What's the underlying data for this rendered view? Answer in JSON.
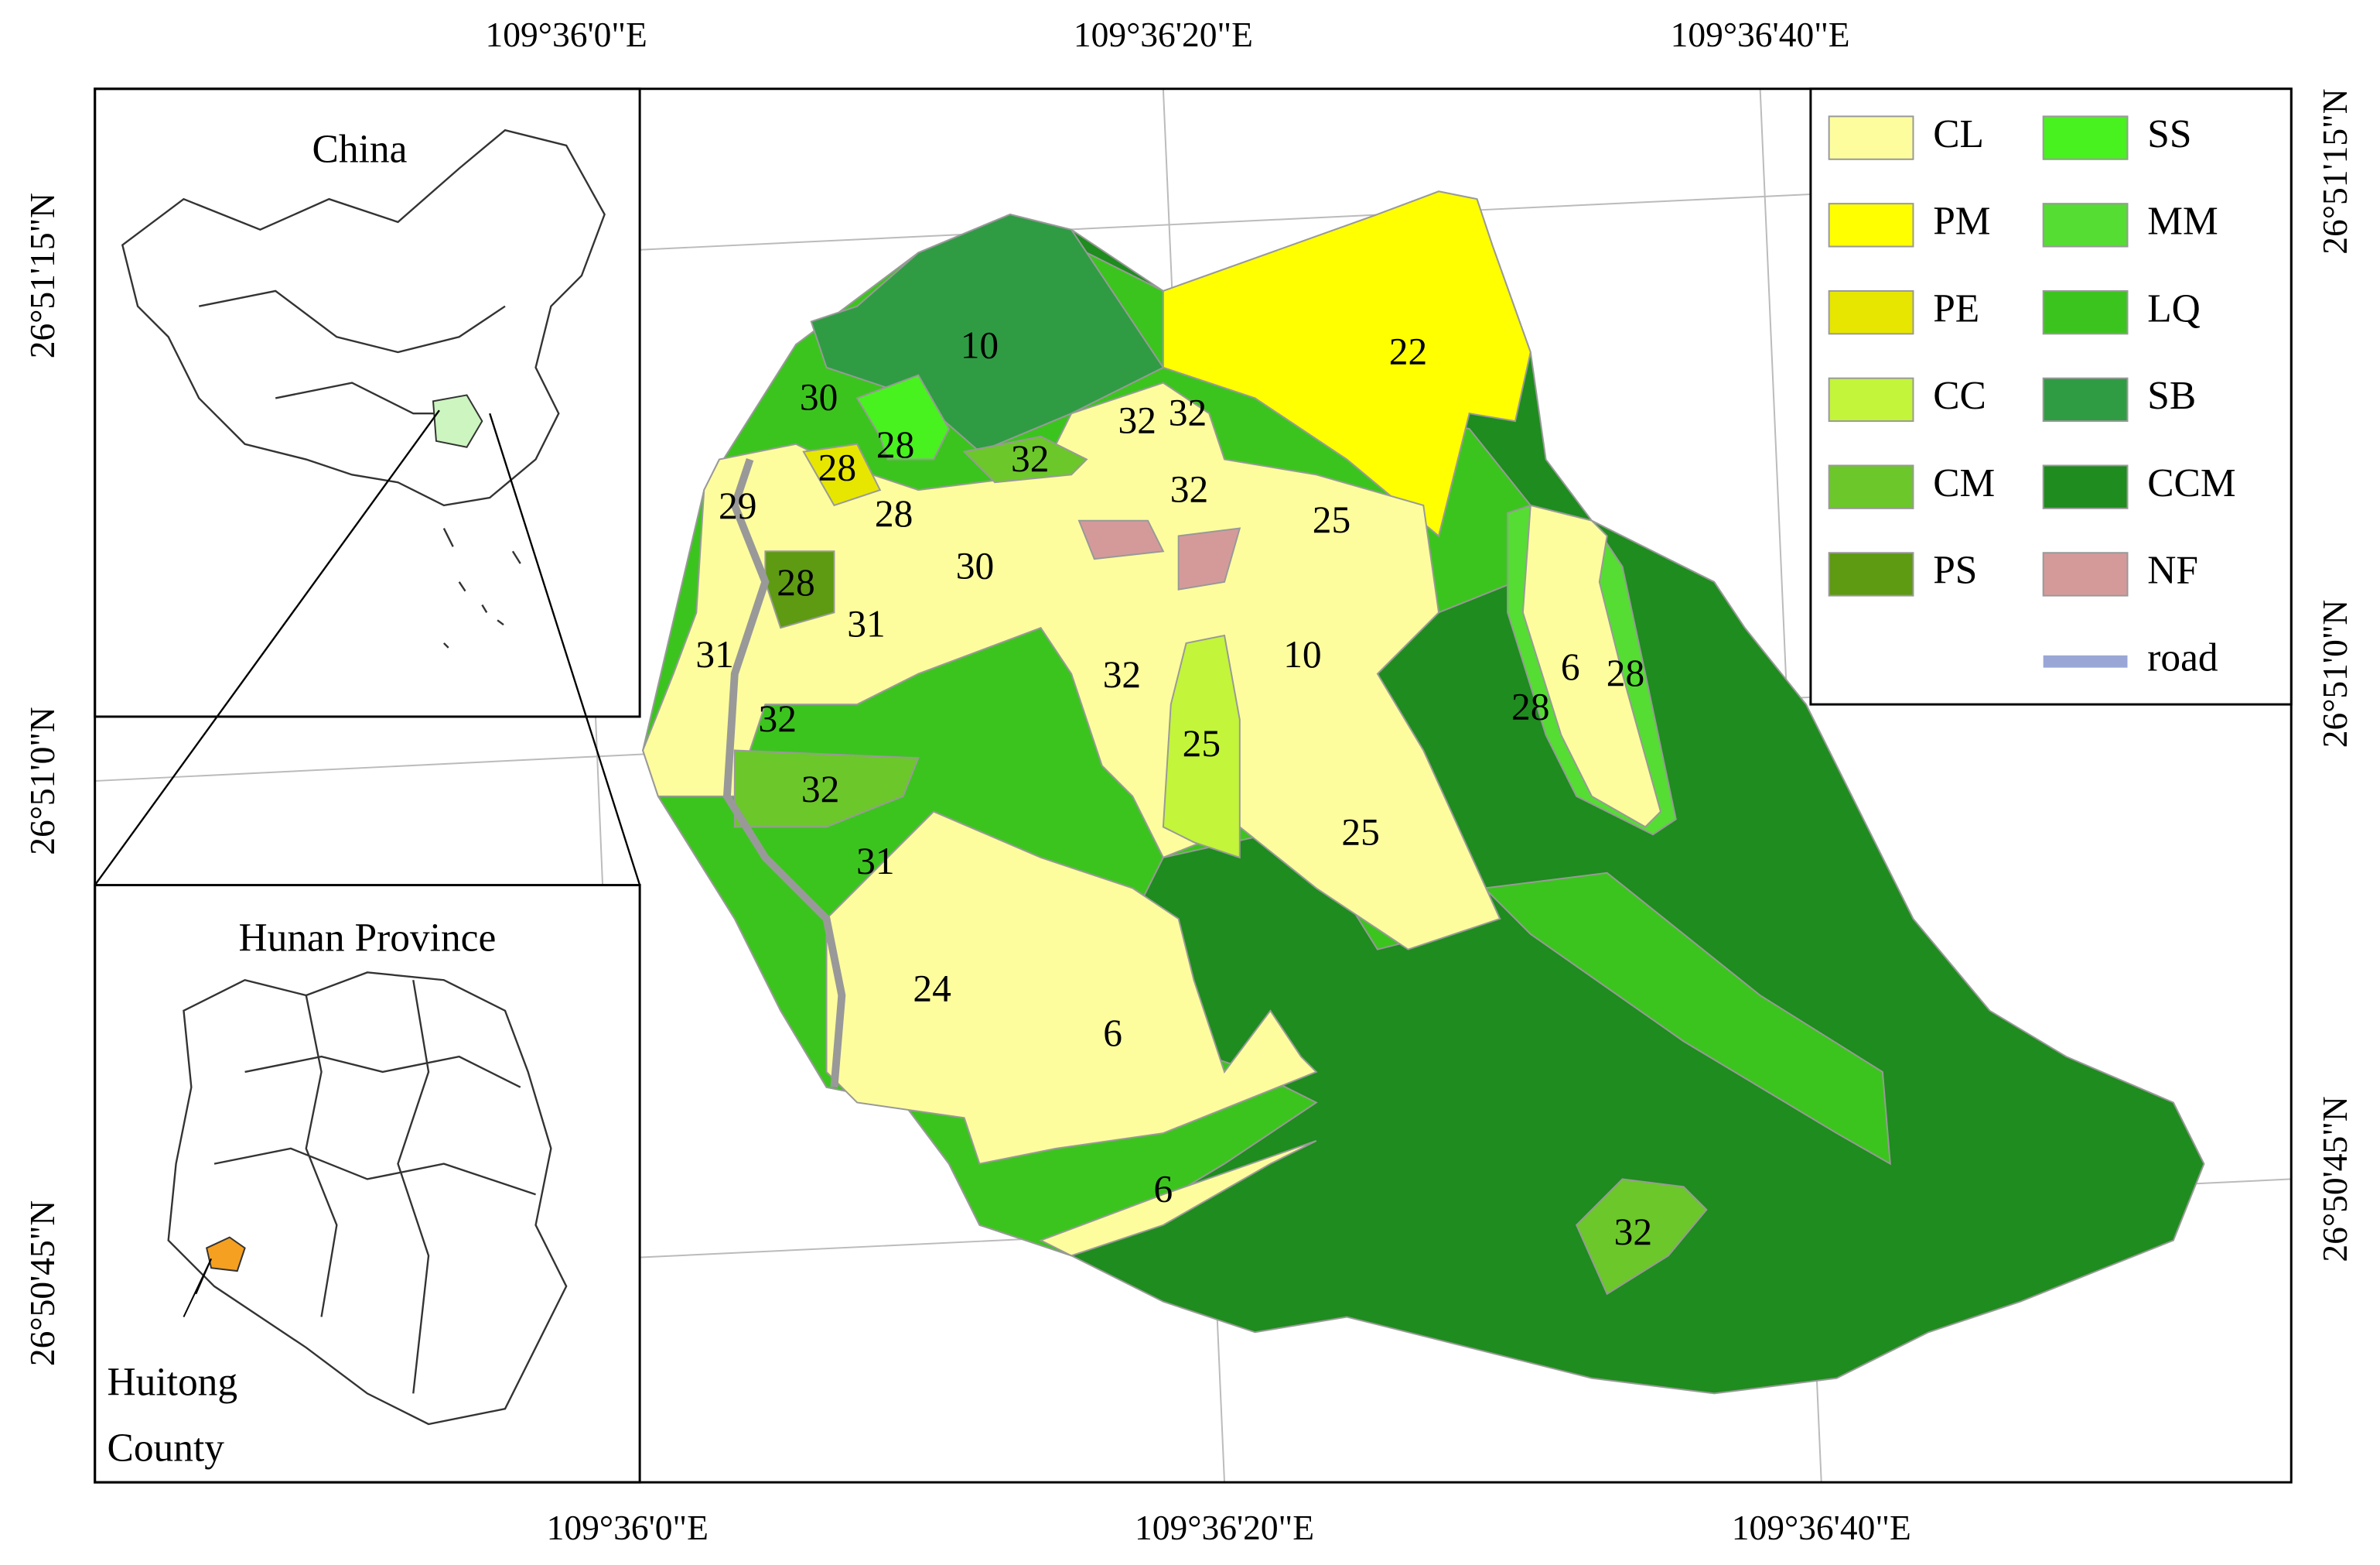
{
  "axis_labels": {
    "top": [
      "109°36'0\"E",
      "109°36'20\"E",
      "109°36'40\"E"
    ],
    "bottom": [
      "109°36'0\"E",
      "109°36'20\"E",
      "109°36'40\"E"
    ],
    "left": [
      "26°51'15\"N",
      "26°51'0\"N",
      "26°50'45\"N"
    ],
    "right": [
      "26°51'15\"N",
      "26°51'0\"N",
      "26°50'45\"N"
    ]
  },
  "insets": {
    "china": "China",
    "hunan": "Hunan Province",
    "county": [
      "Huitong",
      "County"
    ]
  },
  "legend": [
    {
      "label": "CL",
      "color": "#fdfd9e"
    },
    {
      "label": "PM",
      "color": "#ffff00"
    },
    {
      "label": "PE",
      "color": "#e6e600"
    },
    {
      "label": "CC",
      "color": "#c3f53a"
    },
    {
      "label": "CM",
      "color": "#6cc72a"
    },
    {
      "label": "PS",
      "color": "#5e9a12"
    },
    {
      "label": "SS",
      "color": "#48f21e"
    },
    {
      "label": "MM",
      "color": "#55dd33"
    },
    {
      "label": "LQ",
      "color": "#3cc41e"
    },
    {
      "label": "SB",
      "color": "#2f9c44"
    },
    {
      "label": "CCM",
      "color": "#1e8c1e"
    },
    {
      "label": "NF",
      "color": "#d49a9a"
    },
    {
      "label": "road",
      "color": "#9aa6d6"
    }
  ],
  "regions": [
    10,
    22,
    30,
    32,
    32,
    28,
    28,
    32,
    32,
    29,
    28,
    25,
    30,
    28,
    31,
    31,
    32,
    10,
    6,
    28,
    28,
    32,
    25,
    32,
    25,
    31,
    24,
    6,
    6,
    32
  ]
}
